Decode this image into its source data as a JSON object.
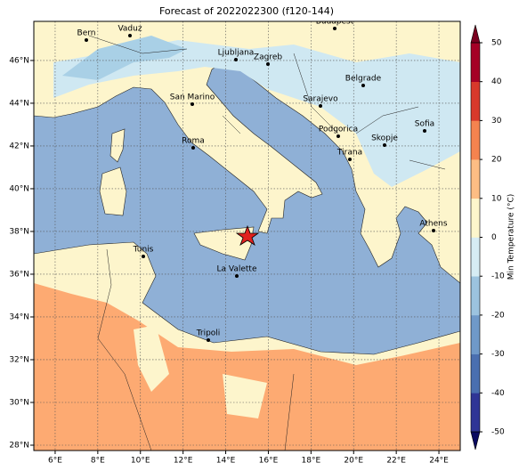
{
  "title": "Forecast of 2022022300 (f120-144)",
  "map": {
    "xlim": [
      5,
      25
    ],
    "ylim": [
      27.75,
      47.83
    ],
    "xticks": [
      {
        "value": 6,
        "label": "6°E"
      },
      {
        "value": 8,
        "label": "8°E"
      },
      {
        "value": 10,
        "label": "10°E"
      },
      {
        "value": 12,
        "label": "12°E"
      },
      {
        "value": 14,
        "label": "14°E"
      },
      {
        "value": 16,
        "label": "16°E"
      },
      {
        "value": 18,
        "label": "18°E"
      },
      {
        "value": 20,
        "label": "20°E"
      },
      {
        "value": 22,
        "label": "22°E"
      },
      {
        "value": 24,
        "label": "24°E"
      }
    ],
    "yticks": [
      {
        "value": 28,
        "label": "28°N"
      },
      {
        "value": 30,
        "label": "30°N"
      },
      {
        "value": 32,
        "label": "32°N"
      },
      {
        "value": 34,
        "label": "34°N"
      },
      {
        "value": 36,
        "label": "36°N"
      },
      {
        "value": 38,
        "label": "38°N"
      },
      {
        "value": 40,
        "label": "40°N"
      },
      {
        "value": 42,
        "label": "42°N"
      },
      {
        "value": 44,
        "label": "44°N"
      },
      {
        "value": 46,
        "label": "46°N"
      }
    ],
    "grid": true,
    "cities": [
      "Bern",
      "Vaduz",
      "Budapest",
      "Ljubljana",
      "Zagreb",
      "Belgrade",
      "San Marino",
      "Sarajevo",
      "Sofia",
      "Podgorica",
      "Skopje",
      "Roma",
      "Tirana",
      "Athens",
      "Tunis",
      "La Valette",
      "Tripoli"
    ]
  },
  "colorbar": {
    "label": "Min Temperature (°C)",
    "lim": [
      -50,
      50
    ],
    "ticks": [
      -50,
      -40,
      -30,
      -20,
      -10,
      0,
      10,
      20,
      30,
      40,
      50
    ],
    "colors": [
      "#2f3596",
      "#4a6fb0",
      "#6f99c9",
      "#9cc3df",
      "#d6ecf4",
      "#fdf6cc",
      "#fdbd84",
      "#f5834f",
      "#d8392b",
      "#a50026"
    ],
    "under": "#0a0a60",
    "over": "#7a0020"
  }
}
